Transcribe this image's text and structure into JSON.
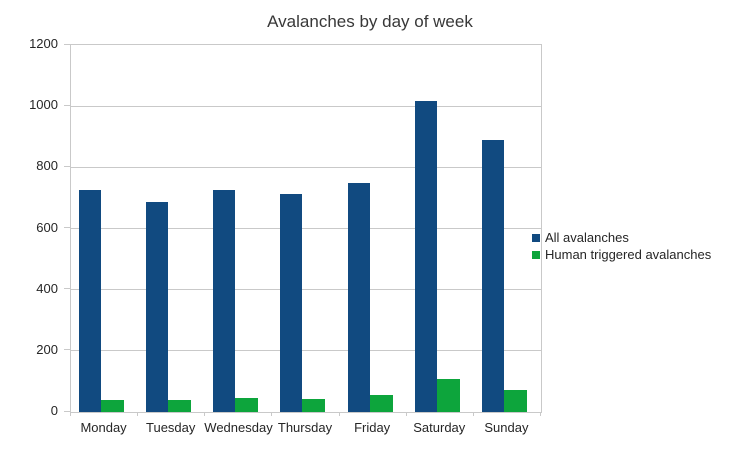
{
  "chart_data": {
    "type": "bar",
    "title": "Avalanches by day of week",
    "categories": [
      "Monday",
      "Tuesday",
      "Wednesday",
      "Thursday",
      "Friday",
      "Saturday",
      "Sunday"
    ],
    "series": [
      {
        "name": "All avalanches",
        "color": "#114a80",
        "values": [
          725,
          688,
          727,
          712,
          750,
          1018,
          890
        ]
      },
      {
        "name": "Human triggered avalanches",
        "color": "#0da53c",
        "values": [
          40,
          40,
          46,
          42,
          55,
          108,
          73
        ]
      }
    ],
    "xlabel": "",
    "ylabel": "",
    "ylim": [
      0,
      1200
    ],
    "yticks": [
      0,
      200,
      400,
      600,
      800,
      1000,
      1200
    ],
    "grid": true,
    "legend_position": "right",
    "background_color": "#ffffff",
    "gridline_color": "#c9c9c9",
    "text_color": "#262626",
    "title_color": "#383838"
  }
}
